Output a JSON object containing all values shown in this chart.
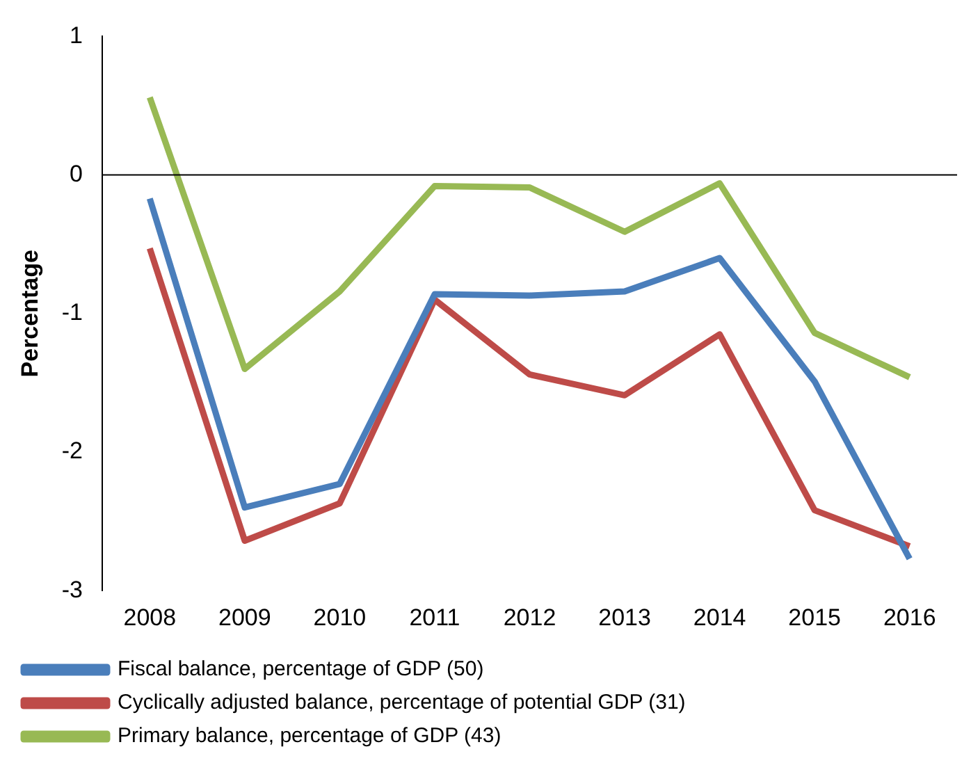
{
  "chart_data": {
    "type": "line",
    "ylabel": "Percentage",
    "categories": [
      "2008",
      "2009",
      "2010",
      "2011",
      "2012",
      "2013",
      "2014",
      "2015",
      "2016"
    ],
    "series": [
      {
        "name": "Fiscal balance, percentage of GDP (50)",
        "color": "#4a7ebb",
        "values": [
          -0.17,
          -2.4,
          -2.23,
          -0.86,
          -0.87,
          -0.84,
          -0.6,
          -1.49,
          -2.77
        ]
      },
      {
        "name": "Cyclically adjusted balance, percentage of potential GDP (31)",
        "color": "#be4b48",
        "values": [
          -0.53,
          -2.64,
          -2.37,
          -0.9,
          -1.44,
          -1.59,
          -1.15,
          -2.42,
          -2.68
        ]
      },
      {
        "name": "Primary balance, percentage of GDP (43)",
        "color": "#98b954",
        "values": [
          0.56,
          -1.4,
          -0.84,
          -0.08,
          -0.09,
          -0.41,
          -0.06,
          -1.14,
          -1.46
        ]
      }
    ],
    "ref_lines": [
      {
        "axis": "y",
        "value": 0,
        "color": "#000000"
      }
    ],
    "ylim": [
      -3,
      1
    ],
    "yticks": [
      -3,
      -2,
      -1,
      0,
      1
    ],
    "grid": false,
    "legend": "bottom",
    "marker": "none",
    "line_style": "solid"
  }
}
